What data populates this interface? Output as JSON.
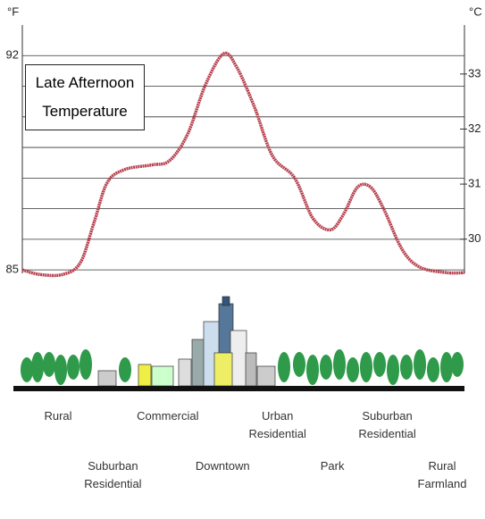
{
  "chart_data": {
    "type": "line",
    "title": "Late Afternoon Temperature",
    "y_label": "°F",
    "y2_label": "°C",
    "x": [
      0,
      4,
      9.1,
      13.1,
      16.2,
      19.2,
      23.2,
      29.3,
      33.3,
      37.4,
      41.4,
      45.5,
      48.5,
      52.5,
      56.6,
      61.6,
      65.7,
      69.7,
      72.7,
      75.8,
      78.8,
      81.8,
      85.9,
      89.9,
      96,
      100
    ],
    "values": [
      85.0,
      84.85,
      84.85,
      85.23,
      86.54,
      87.85,
      88.28,
      88.43,
      88.57,
      89.44,
      91.04,
      92.06,
      91.62,
      90.32,
      88.72,
      88.0,
      86.69,
      86.31,
      86.83,
      87.7,
      87.7,
      86.97,
      85.67,
      85.09,
      84.91,
      84.91
    ],
    "color": "#b8404e",
    "xlim": [
      0,
      100
    ],
    "ylim": [
      84.8,
      93
    ],
    "yticks": [
      85,
      92
    ],
    "yminorticks": [
      86,
      87,
      88,
      89,
      90,
      91
    ],
    "y2lim": [
      29.33,
      33.89
    ],
    "y2ticks": [
      30,
      31,
      32,
      33
    ],
    "grid": true,
    "categories": [
      "Rural",
      "Suburban Residential",
      "Commercial",
      "Downtown",
      "Urban Residential",
      "Park",
      "Suburban Residential",
      "Rural Farmland"
    ]
  }
}
